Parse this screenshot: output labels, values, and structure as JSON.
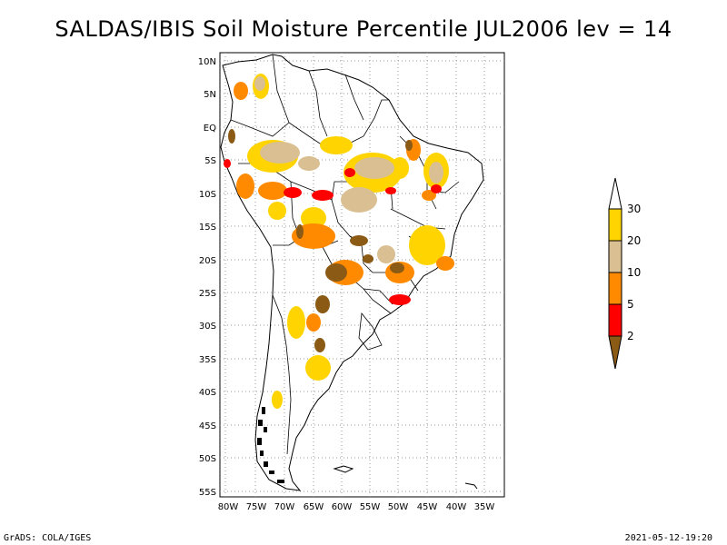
{
  "title": "SALDAS/IBIS Soil Moisture Percentile JUL2006 lev = 14",
  "lat_labels": [
    "10N",
    "5N",
    "EQ",
    "5S",
    "10S",
    "15S",
    "20S",
    "25S",
    "30S",
    "35S",
    "40S",
    "45S",
    "50S",
    "55S"
  ],
  "lon_labels": [
    "80W",
    "75W",
    "70W",
    "65W",
    "60W",
    "55W",
    "50W",
    "45W",
    "40W",
    "35W"
  ],
  "colorbar": {
    "labels": [
      "30",
      "20",
      "10",
      "5",
      "2"
    ],
    "colors": {
      "above_30": "#ffffff",
      "20_30": "#ffd400",
      "10_20": "#d9bf91",
      "5_10": "#ff8a00",
      "2_5": "#ff0000",
      "below_2": "#8b5a14"
    }
  },
  "footer": {
    "left": "GrADS: COLA/IGES",
    "right": "2021-05-12-19:20"
  }
}
